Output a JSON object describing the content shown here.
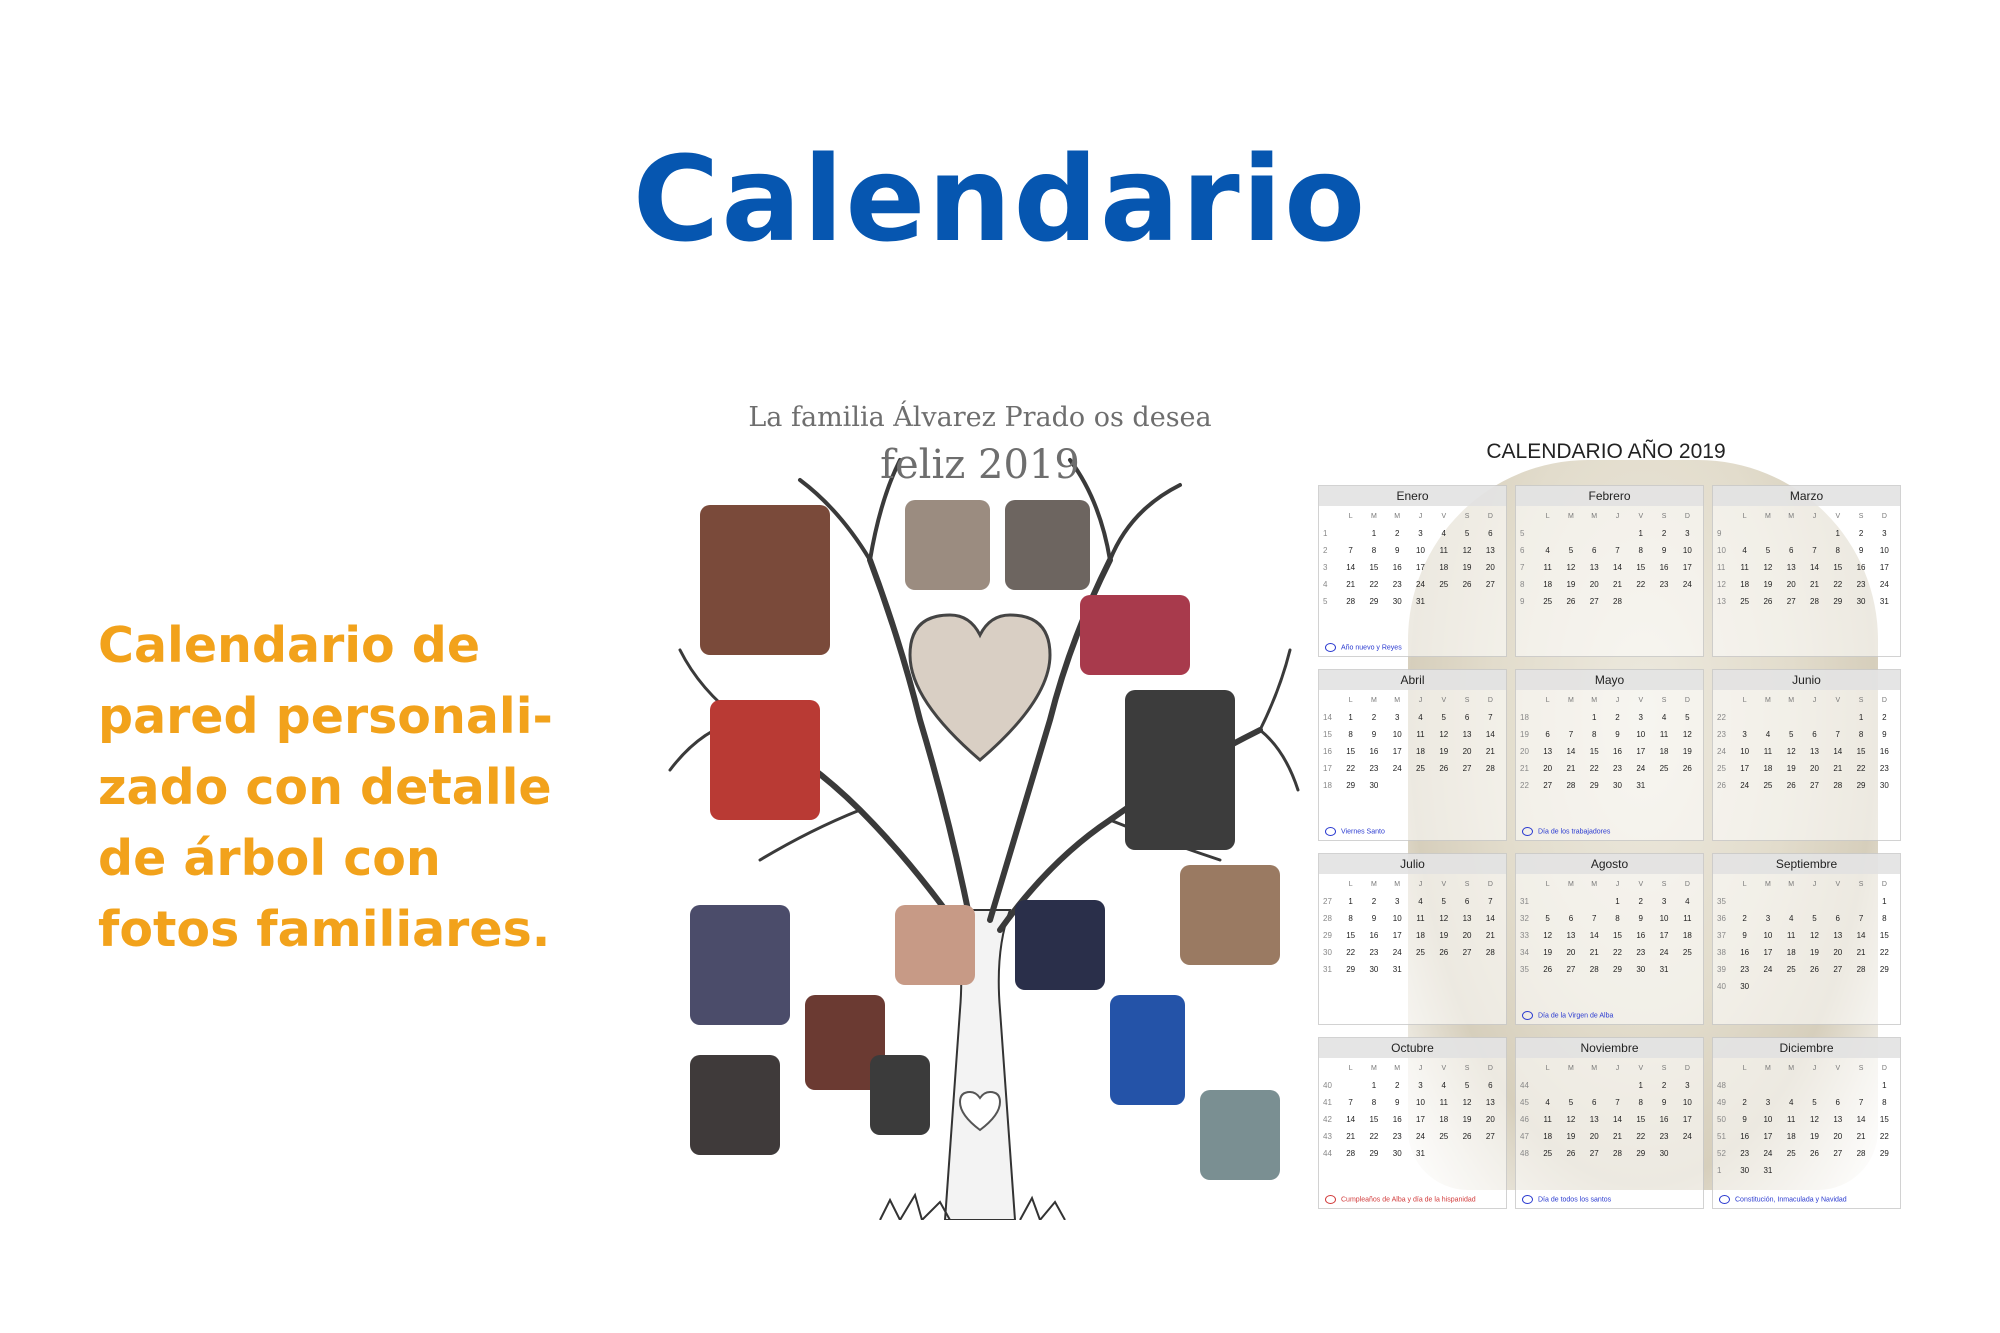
{
  "page": {
    "title": "Calendario",
    "description_lines": [
      "Calendario de",
      "pared personali-",
      "zado con detalle",
      "de árbol con",
      "fotos familiares."
    ]
  },
  "tree_card": {
    "greeting": "La familia Álvarez Prado os desea",
    "year_text": "feliz 2019"
  },
  "calendar_card": {
    "title": "CALENDARIO AÑO 2019",
    "weekday_labels": [
      "L",
      "M",
      "M",
      "J",
      "V",
      "S",
      "D"
    ],
    "months": [
      {
        "name": "Enero",
        "note": "Año nuevo y Reyes",
        "note_color": "blue",
        "weeks": [
          [
            "1",
            "",
            "1",
            "2",
            "3",
            "4",
            "5",
            "6"
          ],
          [
            "2",
            "7",
            "8",
            "9",
            "10",
            "11",
            "12",
            "13"
          ],
          [
            "3",
            "14",
            "15",
            "16",
            "17",
            "18",
            "19",
            "20"
          ],
          [
            "4",
            "21",
            "22",
            "23",
            "24",
            "25",
            "26",
            "27"
          ],
          [
            "5",
            "28",
            "29",
            "30",
            "31",
            "",
            "",
            ""
          ]
        ]
      },
      {
        "name": "Febrero",
        "note": "",
        "note_color": "blue",
        "weeks": [
          [
            "5",
            "",
            "",
            "",
            "",
            "1",
            "2",
            "3"
          ],
          [
            "6",
            "4",
            "5",
            "6",
            "7",
            "8",
            "9",
            "10"
          ],
          [
            "7",
            "11",
            "12",
            "13",
            "14",
            "15",
            "16",
            "17"
          ],
          [
            "8",
            "18",
            "19",
            "20",
            "21",
            "22",
            "23",
            "24"
          ],
          [
            "9",
            "25",
            "26",
            "27",
            "28",
            "",
            "",
            ""
          ]
        ]
      },
      {
        "name": "Marzo",
        "note": "",
        "note_color": "blue",
        "weeks": [
          [
            "9",
            "",
            "",
            "",
            "",
            "1",
            "2",
            "3"
          ],
          [
            "10",
            "4",
            "5",
            "6",
            "7",
            "8",
            "9",
            "10"
          ],
          [
            "11",
            "11",
            "12",
            "13",
            "14",
            "15",
            "16",
            "17"
          ],
          [
            "12",
            "18",
            "19",
            "20",
            "21",
            "22",
            "23",
            "24"
          ],
          [
            "13",
            "25",
            "26",
            "27",
            "28",
            "29",
            "30",
            "31"
          ]
        ]
      },
      {
        "name": "Abril",
        "note": "Viernes Santo",
        "note_color": "blue",
        "weeks": [
          [
            "14",
            "1",
            "2",
            "3",
            "4",
            "5",
            "6",
            "7"
          ],
          [
            "15",
            "8",
            "9",
            "10",
            "11",
            "12",
            "13",
            "14"
          ],
          [
            "16",
            "15",
            "16",
            "17",
            "18",
            "19",
            "20",
            "21"
          ],
          [
            "17",
            "22",
            "23",
            "24",
            "25",
            "26",
            "27",
            "28"
          ],
          [
            "18",
            "29",
            "30",
            "",
            "",
            "",
            "",
            ""
          ]
        ]
      },
      {
        "name": "Mayo",
        "note": "Día de los trabajadores",
        "note_color": "blue",
        "weeks": [
          [
            "18",
            "",
            "",
            "1",
            "2",
            "3",
            "4",
            "5"
          ],
          [
            "19",
            "6",
            "7",
            "8",
            "9",
            "10",
            "11",
            "12"
          ],
          [
            "20",
            "13",
            "14",
            "15",
            "16",
            "17",
            "18",
            "19"
          ],
          [
            "21",
            "20",
            "21",
            "22",
            "23",
            "24",
            "25",
            "26"
          ],
          [
            "22",
            "27",
            "28",
            "29",
            "30",
            "31",
            "",
            ""
          ]
        ]
      },
      {
        "name": "Junio",
        "note": "",
        "note_color": "blue",
        "weeks": [
          [
            "22",
            "",
            "",
            "",
            "",
            "",
            "1",
            "2"
          ],
          [
            "23",
            "3",
            "4",
            "5",
            "6",
            "7",
            "8",
            "9"
          ],
          [
            "24",
            "10",
            "11",
            "12",
            "13",
            "14",
            "15",
            "16"
          ],
          [
            "25",
            "17",
            "18",
            "19",
            "20",
            "21",
            "22",
            "23"
          ],
          [
            "26",
            "24",
            "25",
            "26",
            "27",
            "28",
            "29",
            "30"
          ]
        ]
      },
      {
        "name": "Julio",
        "note": "",
        "note_color": "blue",
        "weeks": [
          [
            "27",
            "1",
            "2",
            "3",
            "4",
            "5",
            "6",
            "7"
          ],
          [
            "28",
            "8",
            "9",
            "10",
            "11",
            "12",
            "13",
            "14"
          ],
          [
            "29",
            "15",
            "16",
            "17",
            "18",
            "19",
            "20",
            "21"
          ],
          [
            "30",
            "22",
            "23",
            "24",
            "25",
            "26",
            "27",
            "28"
          ],
          [
            "31",
            "29",
            "30",
            "31",
            "",
            "",
            "",
            ""
          ]
        ]
      },
      {
        "name": "Agosto",
        "note": "Día de la Virgen de Alba",
        "note_color": "blue",
        "weeks": [
          [
            "31",
            "",
            "",
            "",
            "1",
            "2",
            "3",
            "4"
          ],
          [
            "32",
            "5",
            "6",
            "7",
            "8",
            "9",
            "10",
            "11"
          ],
          [
            "33",
            "12",
            "13",
            "14",
            "15",
            "16",
            "17",
            "18"
          ],
          [
            "34",
            "19",
            "20",
            "21",
            "22",
            "23",
            "24",
            "25"
          ],
          [
            "35",
            "26",
            "27",
            "28",
            "29",
            "30",
            "31",
            ""
          ]
        ]
      },
      {
        "name": "Septiembre",
        "note": "",
        "note_color": "blue",
        "weeks": [
          [
            "35",
            "",
            "",
            "",
            "",
            "",
            "",
            "1"
          ],
          [
            "36",
            "2",
            "3",
            "4",
            "5",
            "6",
            "7",
            "8"
          ],
          [
            "37",
            "9",
            "10",
            "11",
            "12",
            "13",
            "14",
            "15"
          ],
          [
            "38",
            "16",
            "17",
            "18",
            "19",
            "20",
            "21",
            "22"
          ],
          [
            "39",
            "23",
            "24",
            "25",
            "26",
            "27",
            "28",
            "29"
          ],
          [
            "40",
            "30",
            "",
            "",
            "",
            "",
            "",
            ""
          ]
        ]
      },
      {
        "name": "Octubre",
        "note": "Cumpleaños de Alba y día de la hispanidad",
        "note_color": "red",
        "weeks": [
          [
            "40",
            "",
            "1",
            "2",
            "3",
            "4",
            "5",
            "6"
          ],
          [
            "41",
            "7",
            "8",
            "9",
            "10",
            "11",
            "12",
            "13"
          ],
          [
            "42",
            "14",
            "15",
            "16",
            "17",
            "18",
            "19",
            "20"
          ],
          [
            "43",
            "21",
            "22",
            "23",
            "24",
            "25",
            "26",
            "27"
          ],
          [
            "44",
            "28",
            "29",
            "30",
            "31",
            "",
            "",
            ""
          ]
        ]
      },
      {
        "name": "Noviembre",
        "note": "Día de todos los santos",
        "note_color": "blue",
        "weeks": [
          [
            "44",
            "",
            "",
            "",
            "",
            "1",
            "2",
            "3"
          ],
          [
            "45",
            "4",
            "5",
            "6",
            "7",
            "8",
            "9",
            "10"
          ],
          [
            "46",
            "11",
            "12",
            "13",
            "14",
            "15",
            "16",
            "17"
          ],
          [
            "47",
            "18",
            "19",
            "20",
            "21",
            "22",
            "23",
            "24"
          ],
          [
            "48",
            "25",
            "26",
            "27",
            "28",
            "29",
            "30",
            ""
          ]
        ]
      },
      {
        "name": "Diciembre",
        "note": "Constitución, Inmaculada y Navidad",
        "note_color": "blue",
        "weeks": [
          [
            "48",
            "",
            "",
            "",
            "",
            "",
            "",
            "1"
          ],
          [
            "49",
            "2",
            "3",
            "4",
            "5",
            "6",
            "7",
            "8"
          ],
          [
            "50",
            "9",
            "10",
            "11",
            "12",
            "13",
            "14",
            "15"
          ],
          [
            "51",
            "16",
            "17",
            "18",
            "19",
            "20",
            "21",
            "22"
          ],
          [
            "52",
            "23",
            "24",
            "25",
            "26",
            "27",
            "28",
            "29"
          ],
          [
            "1",
            "30",
            "31",
            "",
            "",
            "",
            "",
            ""
          ]
        ]
      }
    ]
  }
}
